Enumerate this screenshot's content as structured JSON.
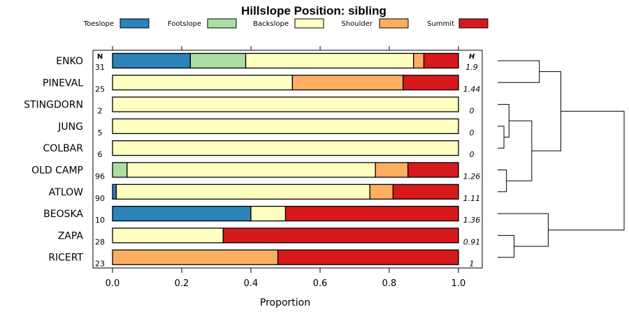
{
  "chart_data": {
    "type": "bar",
    "stacked": true,
    "orientation": "horizontal",
    "title": "Hillslope Position: sibling",
    "xlabel": "Proportion",
    "ylabel": "",
    "xlim": [
      0,
      1
    ],
    "xticks": [
      "0.0",
      "0.2",
      "0.4",
      "0.6",
      "0.8",
      "1.0"
    ],
    "xtick_values": [
      0,
      0.2,
      0.4,
      0.6,
      0.8,
      1.0
    ],
    "legend_placement": "top",
    "n_header": "N",
    "h_header": "H",
    "categories": [
      "ENKO",
      "PINEVAL",
      "STINGDORN",
      "JUNG",
      "COLBAR",
      "OLD CAMP",
      "ATLOW",
      "BEOSKA",
      "ZAPA",
      "RICERT"
    ],
    "n_values": [
      "31",
      "25",
      "2",
      "5",
      "6",
      "96",
      "90",
      "10",
      "28",
      "23"
    ],
    "h_values": [
      "1.9",
      "1.44",
      "0",
      "0",
      "0",
      "1.26",
      "1.11",
      "1.36",
      "0.91",
      "1"
    ],
    "series": [
      {
        "name": "Toeslope",
        "color": "#2b83ba",
        "values": [
          0.225,
          0,
          0,
          0,
          0,
          0,
          0.011,
          0.4,
          0,
          0
        ]
      },
      {
        "name": "Footslope",
        "color": "#abdda4",
        "values": [
          0.16,
          0,
          0,
          0,
          0,
          0.042,
          0,
          0,
          0,
          0
        ]
      },
      {
        "name": "Backslope",
        "color": "#ffffbf",
        "values": [
          0.485,
          0.52,
          1.0,
          1.0,
          1.0,
          0.718,
          0.733,
          0.1,
          0.32,
          0
        ]
      },
      {
        "name": "Shoulder",
        "color": "#fdae61",
        "values": [
          0.03,
          0.32,
          0,
          0,
          0,
          0.094,
          0.067,
          0,
          0,
          0.478
        ]
      },
      {
        "name": "Summit",
        "color": "#d7191c",
        "values": [
          0.1,
          0.16,
          0,
          0,
          0,
          0.146,
          0.189,
          0.5,
          0.68,
          0.522
        ]
      }
    ],
    "dendrogram_merges": [
      {
        "left": "JUNG",
        "right": "COLBAR",
        "height": 0.05
      },
      {
        "left": "STINGDORN",
        "right": "JUNG+COLBAR",
        "height": 0.09
      },
      {
        "left": "OLD CAMP",
        "right": "ATLOW",
        "height": 0.07
      },
      {
        "left": "STINGDORN+JUNG+COLBAR",
        "right": "OLD CAMP+ATLOW",
        "height": 0.27
      },
      {
        "left": "ENKO",
        "right": "PINEVAL",
        "height": 0.33
      },
      {
        "left": "ENKO+PINEVAL",
        "right": "STINGDORN..ATLOW",
        "height": 0.5
      },
      {
        "left": "ZAPA",
        "right": "RICERT",
        "height": 0.13
      },
      {
        "left": "BEOSKA",
        "right": "ZAPA+RICERT",
        "height": 0.4
      },
      {
        "left": "ENKO..ATLOW",
        "right": "BEOSKA..RICERT",
        "height": 1.0
      }
    ]
  }
}
